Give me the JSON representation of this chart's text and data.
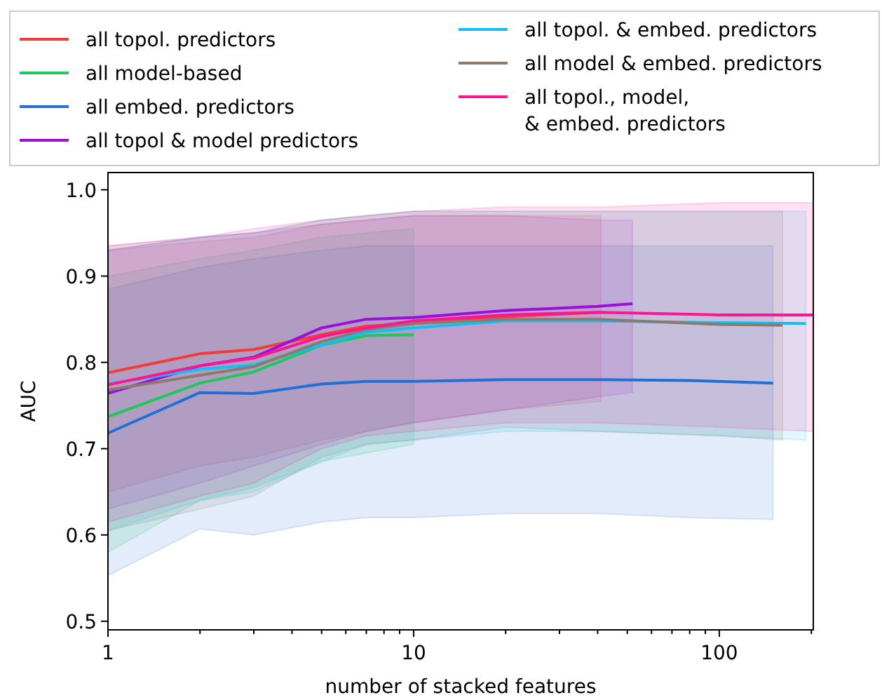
{
  "chart_data": {
    "type": "line",
    "xlabel": "number of stacked features",
    "ylabel": "AUC",
    "log": "x",
    "legend": "top",
    "grid": false,
    "marker": "none",
    "line_style": "solid",
    "xlim": [
      1,
      203
    ],
    "ylim": [
      0.49,
      1.02
    ],
    "xticks": [
      1,
      {
        "value": 2,
        "label": null
      },
      {
        "value": 3,
        "label": null
      },
      {
        "value": 4,
        "label": null
      },
      {
        "value": 5,
        "label": null
      },
      {
        "value": 6,
        "label": null
      },
      {
        "value": 7,
        "label": null
      },
      {
        "value": 8,
        "label": null
      },
      {
        "value": 9,
        "label": null
      },
      10,
      {
        "value": 20,
        "label": null
      },
      {
        "value": 30,
        "label": null
      },
      {
        "value": 40,
        "label": null
      },
      {
        "value": 50,
        "label": null
      },
      {
        "value": 60,
        "label": null
      },
      {
        "value": 70,
        "label": null
      },
      {
        "value": 80,
        "label": null
      },
      {
        "value": 90,
        "label": null
      },
      100,
      {
        "value": 200,
        "label": null
      }
    ],
    "yticks": [
      0.5,
      0.6,
      0.7,
      0.8,
      0.9,
      {
        "value": 1,
        "label": "1.0"
      }
    ],
    "series": [
      {
        "name": "all topol. predictors",
        "color": "#f23c3c",
        "x": [
          1,
          2,
          3,
          5,
          7,
          10,
          20,
          41
        ],
        "values": [
          0.788,
          0.81,
          0.815,
          0.832,
          0.842,
          0.845,
          0.853,
          0.858
        ],
        "lower": [
          0.65,
          0.68,
          0.69,
          0.71,
          0.72,
          0.73,
          0.745,
          0.755
        ],
        "upper": [
          0.93,
          0.94,
          0.945,
          0.96,
          0.965,
          0.97,
          0.97,
          0.97
        ]
      },
      {
        "name": "all model-based",
        "color": "#1ec85a",
        "x": [
          1,
          2,
          3,
          5,
          7,
          10
        ],
        "values": [
          0.737,
          0.776,
          0.789,
          0.82,
          0.831,
          0.832
        ],
        "lower": [
          0.58,
          0.64,
          0.655,
          0.685,
          0.695,
          0.705
        ],
        "upper": [
          0.9,
          0.92,
          0.93,
          0.945,
          0.95,
          0.955
        ]
      },
      {
        "name": "all embed. predictors",
        "color": "#1f6fd6",
        "x": [
          1,
          2,
          3,
          5,
          7,
          10,
          20,
          40,
          80,
          150
        ],
        "values": [
          0.718,
          0.765,
          0.764,
          0.775,
          0.778,
          0.778,
          0.78,
          0.78,
          0.779,
          0.776
        ],
        "lower": [
          0.553,
          0.607,
          0.6,
          0.615,
          0.62,
          0.62,
          0.625,
          0.625,
          0.62,
          0.618
        ],
        "upper": [
          0.885,
          0.91,
          0.92,
          0.93,
          0.935,
          0.935,
          0.935,
          0.935,
          0.935,
          0.935
        ]
      },
      {
        "name": "all topol  & model predictors",
        "color": "#9b10d8",
        "x": [
          1,
          2,
          3,
          5,
          7,
          10,
          20,
          40,
          52
        ],
        "values": [
          0.764,
          0.796,
          0.806,
          0.84,
          0.85,
          0.852,
          0.86,
          0.865,
          0.868
        ],
        "lower": [
          0.63,
          0.66,
          0.68,
          0.705,
          0.72,
          0.73,
          0.745,
          0.76,
          0.765
        ],
        "upper": [
          0.93,
          0.945,
          0.95,
          0.96,
          0.965,
          0.97,
          0.97,
          0.965,
          0.965
        ]
      },
      {
        "name": "all topol. & embed. predictors",
        "color": "#10bff5",
        "x": [
          1,
          2,
          3,
          5,
          7,
          10,
          20,
          40,
          100,
          192
        ],
        "values": [
          0.775,
          0.792,
          0.797,
          0.82,
          0.835,
          0.84,
          0.848,
          0.848,
          0.846,
          0.845
        ],
        "lower": [
          0.605,
          0.64,
          0.65,
          0.685,
          0.705,
          0.71,
          0.72,
          0.72,
          0.715,
          0.71
        ],
        "upper": [
          0.93,
          0.945,
          0.95,
          0.965,
          0.97,
          0.975,
          0.975,
          0.975,
          0.975,
          0.975
        ]
      },
      {
        "name": "all model & embed. predictors",
        "color": "#8c7a6b",
        "x": [
          1,
          2,
          3,
          5,
          7,
          10,
          20,
          40,
          100,
          161
        ],
        "values": [
          0.768,
          0.785,
          0.795,
          0.824,
          0.838,
          0.845,
          0.85,
          0.85,
          0.844,
          0.843
        ],
        "lower": [
          0.605,
          0.63,
          0.645,
          0.69,
          0.705,
          0.71,
          0.725,
          0.72,
          0.715,
          0.71
        ],
        "upper": [
          0.935,
          0.945,
          0.95,
          0.965,
          0.97,
          0.975,
          0.975,
          0.975,
          0.975,
          0.975
        ]
      },
      {
        "name": "all topol., model,\n& embed. predictors",
        "color": "#ff1493",
        "x": [
          1,
          2,
          3,
          5,
          7,
          10,
          20,
          40,
          100,
          203
        ],
        "values": [
          0.774,
          0.796,
          0.805,
          0.83,
          0.84,
          0.848,
          0.855,
          0.858,
          0.855,
          0.855
        ],
        "lower": [
          0.615,
          0.645,
          0.66,
          0.7,
          0.715,
          0.72,
          0.73,
          0.73,
          0.725,
          0.72
        ],
        "upper": [
          0.935,
          0.945,
          0.955,
          0.965,
          0.97,
          0.975,
          0.98,
          0.98,
          0.985,
          0.985
        ]
      }
    ]
  }
}
